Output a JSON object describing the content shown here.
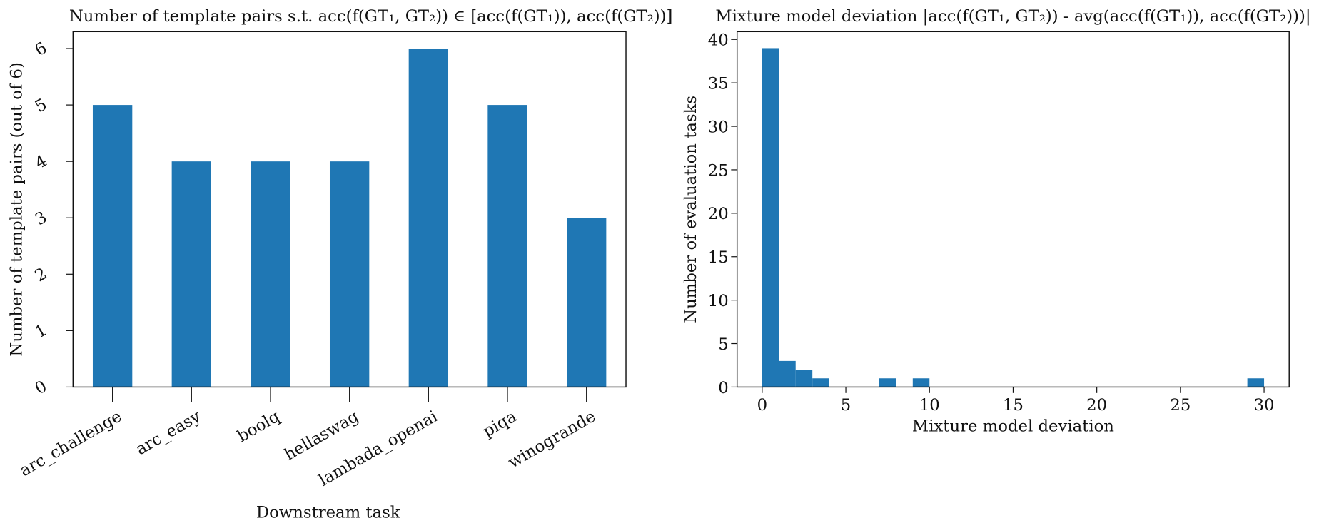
{
  "chart_data": [
    {
      "type": "bar",
      "title": "Number of template pairs s.t. acc(f(GT₁, GT₂)) ∈ [acc(f(GT₁)), acc(f(GT₂))]",
      "x_label": "Downstream task",
      "y_label": "Number of template pairs (out of 6)",
      "categories": [
        "arc_challenge",
        "arc_easy",
        "boolq",
        "hellaswag",
        "lambada_openai",
        "piqa",
        "winogrande"
      ],
      "values": [
        5,
        4,
        4,
        4,
        6,
        5,
        3
      ],
      "color": "#1f77b4",
      "ylim": [
        0,
        6.3
      ],
      "yticks": [
        0,
        1,
        2,
        3,
        4,
        5,
        6
      ],
      "grid": false
    },
    {
      "type": "histogram",
      "title": "Mixture model deviation |acc(f(GT₁, GT₂)) - avg(acc(f(GT₁)), acc(f(GT₂)))|",
      "x_label": "Mixture model deviation",
      "y_label": "Number of evaluation tasks",
      "bins": [
        0,
        1,
        2,
        3,
        4,
        5,
        6,
        7,
        8,
        9,
        10,
        11,
        12,
        13,
        14,
        15,
        16,
        17,
        18,
        19,
        20,
        21,
        22,
        23,
        24,
        25,
        26,
        27,
        28,
        29,
        30
      ],
      "values": [
        39,
        3,
        2,
        1,
        0,
        0,
        0,
        1,
        0,
        1,
        0,
        0,
        0,
        0,
        0,
        0,
        0,
        0,
        0,
        0,
        0,
        0,
        0,
        0,
        0,
        0,
        0,
        0,
        0,
        1
      ],
      "color": "#1f77b4",
      "xlim": [
        -1.5,
        31.5
      ],
      "xticks": [
        0,
        5,
        10,
        15,
        20,
        25,
        30
      ],
      "ylim": [
        0,
        40.9
      ],
      "yticks": [
        0,
        5,
        10,
        15,
        20,
        25,
        30,
        35,
        40
      ],
      "grid": false
    }
  ]
}
